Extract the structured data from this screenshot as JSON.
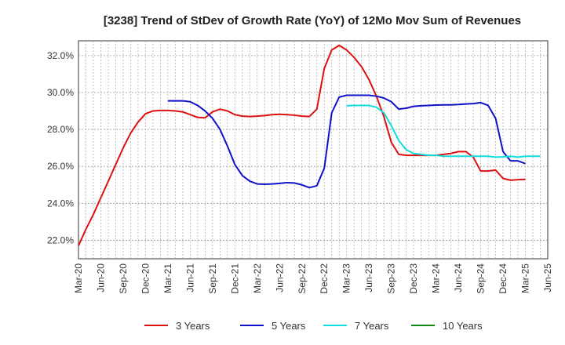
{
  "chart_data": {
    "type": "line",
    "title": "[3238]  Trend of StDev of Growth Rate (YoY) of 12Mo Mov Sum of Revenues",
    "xlabel": "",
    "ylabel": "",
    "ylim": [
      21.0,
      32.8
    ],
    "y_ticks": [
      22.0,
      24.0,
      26.0,
      28.0,
      30.0,
      32.0
    ],
    "y_tick_labels": [
      "22.0%",
      "24.0%",
      "26.0%",
      "28.0%",
      "30.0%",
      "32.0%"
    ],
    "x_tick_labels": [
      "Mar-20",
      "Jun-20",
      "Sep-20",
      "Dec-20",
      "Mar-21",
      "Jun-21",
      "Sep-21",
      "Dec-21",
      "Mar-22",
      "Jun-22",
      "Sep-22",
      "Dec-22",
      "Mar-23",
      "Jun-23",
      "Sep-23",
      "Dec-23",
      "Mar-24",
      "Jun-24",
      "Sep-24",
      "Dec-24",
      "Mar-25",
      "Jun-25"
    ],
    "x_start_month_index": 0,
    "x_num_months": 63,
    "grid": true,
    "legend_position": "bottom",
    "series": [
      {
        "name": "3 Years",
        "color": "#dd1111",
        "start_month": 0,
        "values": [
          21.7,
          22.6,
          23.4,
          24.3,
          25.2,
          26.1,
          27.0,
          27.8,
          28.4,
          28.85,
          29.0,
          29.03,
          29.03,
          29.0,
          28.95,
          28.8,
          28.65,
          28.63,
          28.95,
          29.1,
          29.0,
          28.8,
          28.72,
          28.7,
          28.72,
          28.75,
          28.8,
          28.82,
          28.8,
          28.77,
          28.72,
          28.7,
          29.1,
          31.3,
          32.3,
          32.55,
          32.3,
          31.9,
          31.4,
          30.7,
          29.8,
          28.7,
          27.3,
          26.65,
          26.6,
          26.6,
          26.6,
          26.6,
          26.6,
          26.65,
          26.7,
          26.8,
          26.8,
          26.5,
          25.75,
          25.75,
          25.8,
          25.35,
          25.25,
          25.28,
          25.3
        ]
      },
      {
        "name": "5 Years",
        "color": "#1111cc",
        "start_month": 12,
        "values": [
          29.55,
          29.55,
          29.55,
          29.5,
          29.3,
          29.0,
          28.6,
          28.0,
          27.1,
          26.1,
          25.5,
          25.2,
          25.05,
          25.03,
          25.05,
          25.08,
          25.12,
          25.1,
          25.0,
          24.85,
          24.95,
          25.9,
          28.9,
          29.75,
          29.85,
          29.85,
          29.85,
          29.85,
          29.8,
          29.7,
          29.5,
          29.1,
          29.15,
          29.25,
          29.28,
          29.3,
          29.32,
          29.33,
          29.33,
          29.35,
          29.38,
          29.4,
          29.45,
          29.3,
          28.6,
          26.8,
          26.3,
          26.3,
          26.15
        ]
      },
      {
        "name": "7 Years",
        "color": "#11dddd",
        "start_month": 36,
        "values": [
          29.28,
          29.3,
          29.3,
          29.3,
          29.2,
          28.9,
          28.2,
          27.4,
          26.9,
          26.7,
          26.65,
          26.6,
          26.6,
          26.55,
          26.55,
          26.55,
          26.55,
          26.55,
          26.55,
          26.55,
          26.5,
          26.52,
          26.55,
          26.5,
          26.55,
          26.55,
          26.55
        ]
      },
      {
        "name": "10 Years",
        "color": "#118811",
        "start_month": 0,
        "values": []
      }
    ]
  }
}
